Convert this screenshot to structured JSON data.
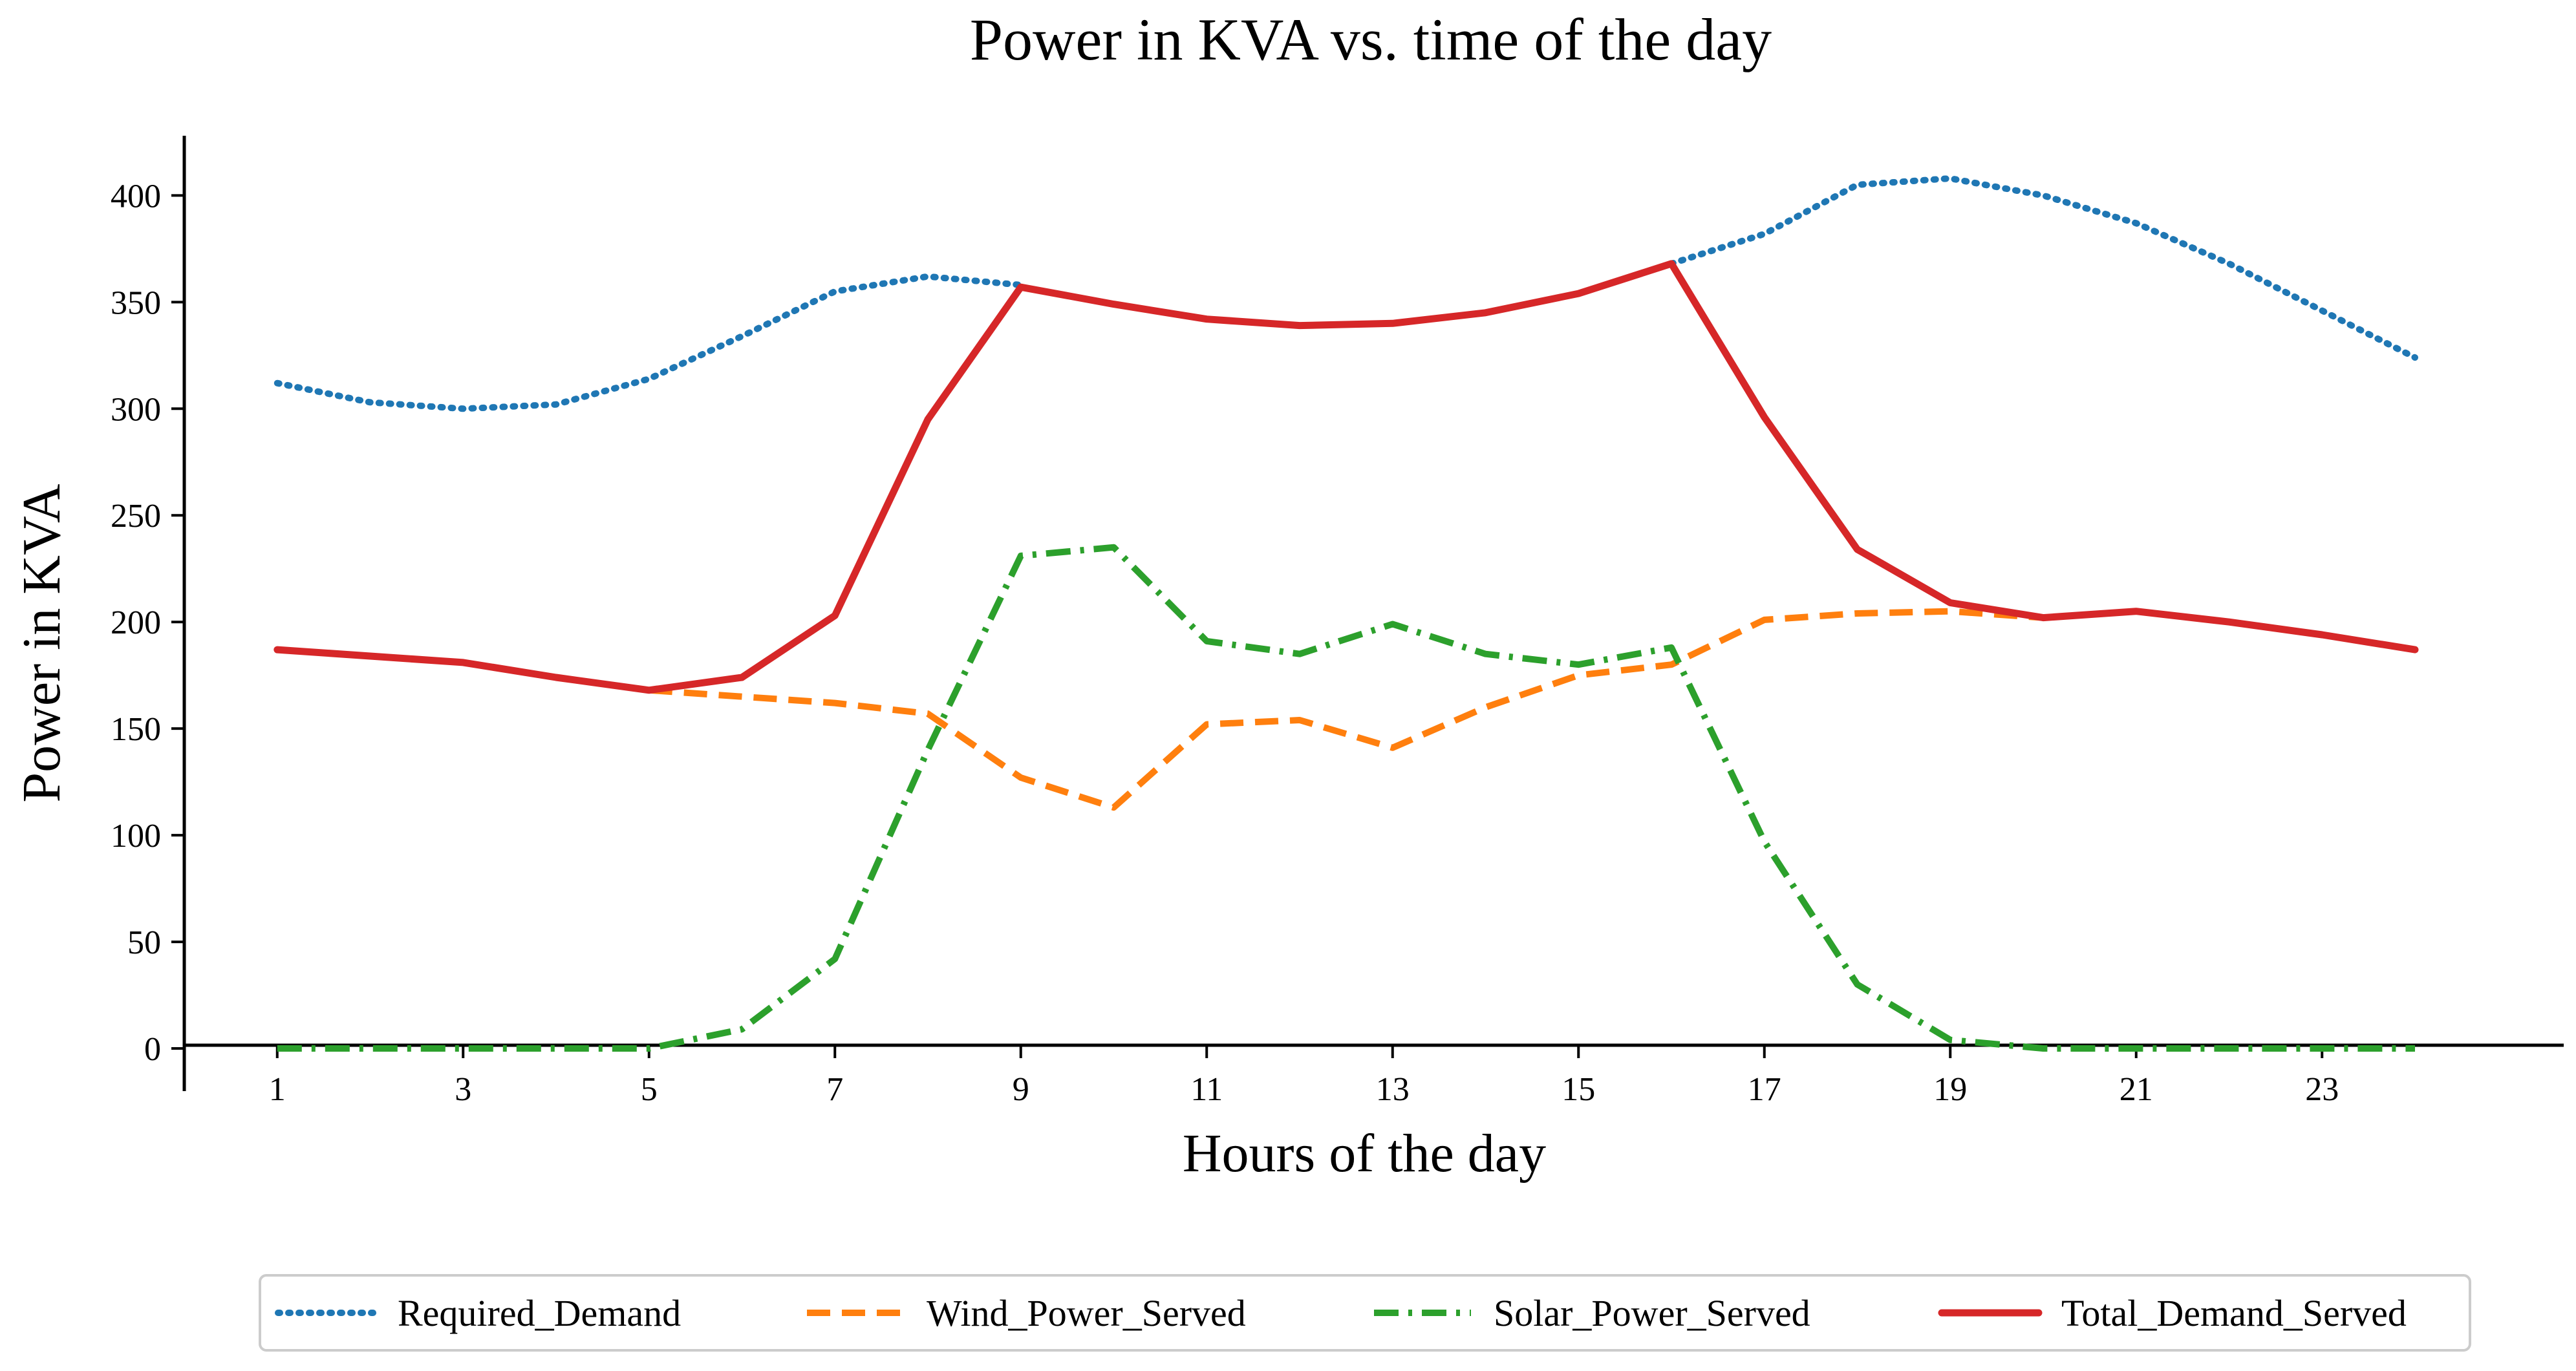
{
  "chart_data": {
    "type": "line",
    "title": "Power in KVA vs. time of the day",
    "xlabel": "Hours of the day",
    "ylabel": "Power in KVA",
    "x": [
      1,
      2,
      3,
      4,
      5,
      6,
      7,
      8,
      9,
      10,
      11,
      12,
      13,
      14,
      15,
      16,
      17,
      18,
      19,
      20,
      21,
      22,
      23,
      24
    ],
    "xticks": [
      1,
      3,
      5,
      7,
      9,
      11,
      13,
      15,
      17,
      19,
      21,
      23
    ],
    "yticks": [
      0,
      50,
      100,
      150,
      200,
      250,
      300,
      350,
      400
    ],
    "xlim": [
      0,
      25.6
    ],
    "ylim": [
      -20,
      428
    ],
    "grid": false,
    "legend_position": "bottom-center",
    "series": [
      {
        "name": "Required_Demand",
        "color": "#1f77b4",
        "style": "dotted",
        "values": [
          312,
          303,
          300,
          302,
          314,
          334,
          355,
          362,
          358,
          null,
          null,
          null,
          null,
          null,
          null,
          368,
          382,
          405,
          408,
          400,
          387,
          368,
          346,
          324
        ]
      },
      {
        "name": "Wind_Power_Served",
        "color": "#ff7f0e",
        "style": "dashed",
        "values": [
          null,
          null,
          null,
          null,
          168,
          165,
          162,
          157,
          127,
          113,
          152,
          154,
          141,
          160,
          175,
          180,
          201,
          204,
          205,
          202,
          null,
          null,
          null,
          null
        ]
      },
      {
        "name": "Solar_Power_Served",
        "color": "#2ca02c",
        "style": "dashdot",
        "values": [
          0,
          0,
          0,
          0,
          0,
          9,
          42,
          140,
          231,
          235,
          191,
          185,
          199,
          185,
          180,
          188,
          97,
          30,
          4,
          0,
          0,
          0,
          0,
          0
        ]
      },
      {
        "name": "Total_Demand_Served",
        "color": "#d62728",
        "style": "solid",
        "values": [
          187,
          184,
          181,
          174,
          168,
          174,
          203,
          295,
          357,
          349,
          342,
          339,
          340,
          345,
          354,
          368,
          296,
          234,
          209,
          202,
          205,
          200,
          194,
          187
        ]
      }
    ]
  }
}
